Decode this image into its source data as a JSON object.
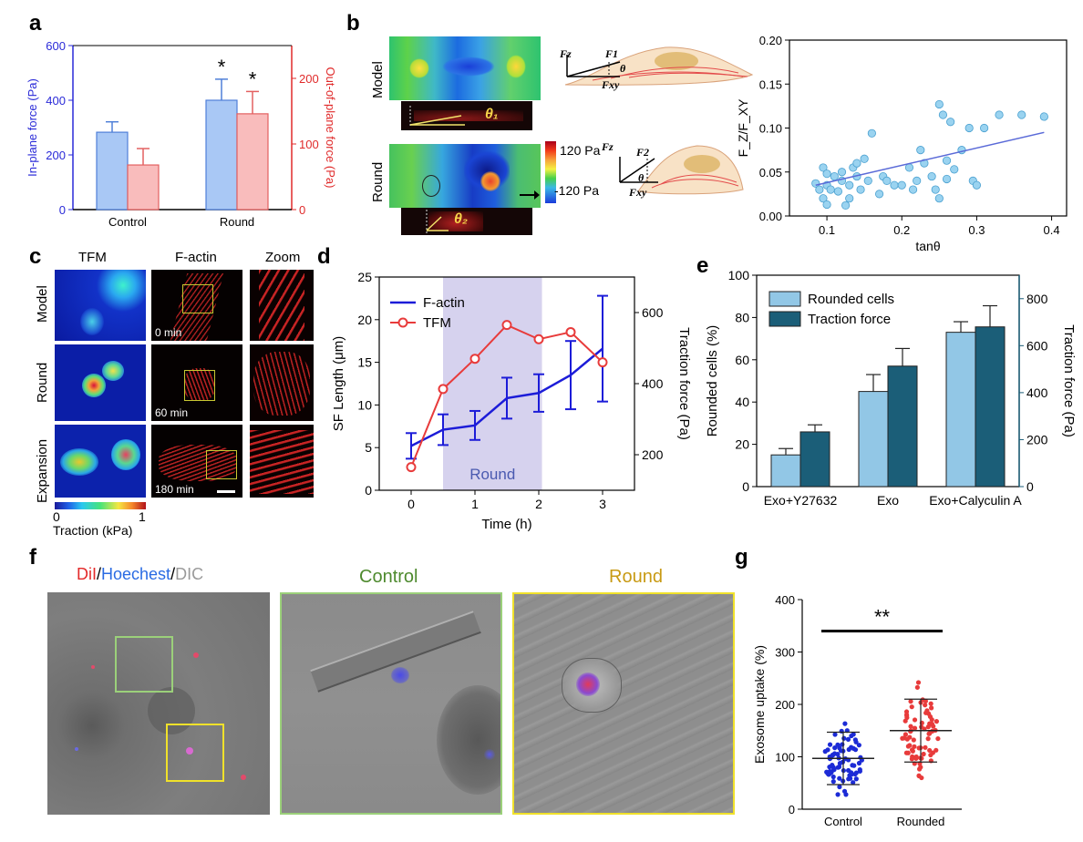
{
  "panels": {
    "a": "a",
    "b": "b",
    "c": "c",
    "d": "d",
    "e": "e",
    "f": "f",
    "g": "g"
  },
  "panel_b": {
    "row_model": "Model",
    "row_round": "Round",
    "theta1": "θ₁",
    "theta2": "θ₂",
    "colorbar_top": "120 Pa",
    "colorbar_bottom": "-120 Pa",
    "fz": "Fz",
    "f1": "F1",
    "f2": "F2",
    "fxy": "Fxy",
    "theta": "θ"
  },
  "panel_c": {
    "col_tfm": "TFM",
    "col_factin": "F-actin",
    "col_zoom": "Zoom",
    "row_model": "Model",
    "row_round": "Round",
    "row_expansion": "Expansion",
    "t0": "0 min",
    "t60": "60 min",
    "t180": "180 min",
    "cbar_min": "0",
    "cbar_max": "1",
    "cbar_label": "Traction (kPa)"
  },
  "panel_f": {
    "stain_dil": "DiI",
    "stain_sep1": "/",
    "stain_hoechst": "Hoechest",
    "stain_sep2": "/",
    "stain_dic": "DIC",
    "control": "Control",
    "round": "Round"
  },
  "chart_data": [
    {
      "id": "a",
      "type": "bar",
      "categories": [
        "Control",
        "Round"
      ],
      "series": [
        {
          "name": "In-plane force (Pa)",
          "axis": "left",
          "color": "#a9c8f5",
          "values": [
            283,
            400
          ],
          "errors": [
            38,
            77
          ]
        },
        {
          "name": "Out-of-plane force (Pa)",
          "axis": "right",
          "color": "#f9bcbc",
          "values": [
            68,
            146
          ],
          "errors": [
            25,
            34
          ]
        }
      ],
      "ylabel_left": "In-plane force (Pa)",
      "ylabel_right": "Out-of-plane force (Pa)",
      "ylim_left": [
        0,
        600
      ],
      "yticks_left": [
        0,
        200,
        400,
        600
      ],
      "ylim_right": [
        0,
        250
      ],
      "yticks_right": [
        0,
        100,
        200
      ],
      "annotations": [
        "*",
        "*"
      ]
    },
    {
      "id": "b",
      "type": "scatter",
      "xlabel": "tanθ",
      "ylabel": "F_Z/F_XY",
      "xlim": [
        0.05,
        0.42
      ],
      "xticks": [
        0.1,
        0.2,
        0.3,
        0.4
      ],
      "ylim": [
        0,
        0.2
      ],
      "yticks": [
        0.0,
        0.05,
        0.1,
        0.15,
        0.2
      ],
      "fit_line": [
        [
          0.085,
          0.035
        ],
        [
          0.39,
          0.095
        ]
      ],
      "points": [
        [
          0.085,
          0.037
        ],
        [
          0.09,
          0.03
        ],
        [
          0.095,
          0.055
        ],
        [
          0.095,
          0.02
        ],
        [
          0.1,
          0.048
        ],
        [
          0.1,
          0.035
        ],
        [
          0.1,
          0.013
        ],
        [
          0.105,
          0.03
        ],
        [
          0.11,
          0.045
        ],
        [
          0.115,
          0.028
        ],
        [
          0.12,
          0.04
        ],
        [
          0.12,
          0.05
        ],
        [
          0.125,
          0.012
        ],
        [
          0.13,
          0.02
        ],
        [
          0.13,
          0.035
        ],
        [
          0.135,
          0.055
        ],
        [
          0.14,
          0.06
        ],
        [
          0.14,
          0.045
        ],
        [
          0.145,
          0.03
        ],
        [
          0.15,
          0.065
        ],
        [
          0.155,
          0.04
        ],
        [
          0.16,
          0.094
        ],
        [
          0.17,
          0.025
        ],
        [
          0.175,
          0.045
        ],
        [
          0.18,
          0.04
        ],
        [
          0.19,
          0.035
        ],
        [
          0.2,
          0.035
        ],
        [
          0.21,
          0.055
        ],
        [
          0.215,
          0.03
        ],
        [
          0.22,
          0.04
        ],
        [
          0.225,
          0.075
        ],
        [
          0.23,
          0.06
        ],
        [
          0.24,
          0.045
        ],
        [
          0.245,
          0.03
        ],
        [
          0.25,
          0.02
        ],
        [
          0.25,
          0.127
        ],
        [
          0.255,
          0.115
        ],
        [
          0.26,
          0.063
        ],
        [
          0.26,
          0.042
        ],
        [
          0.265,
          0.107
        ],
        [
          0.27,
          0.053
        ],
        [
          0.28,
          0.075
        ],
        [
          0.29,
          0.1
        ],
        [
          0.295,
          0.04
        ],
        [
          0.3,
          0.035
        ],
        [
          0.31,
          0.1
        ],
        [
          0.33,
          0.115
        ],
        [
          0.36,
          0.115
        ],
        [
          0.39,
          0.113
        ]
      ]
    },
    {
      "id": "d",
      "type": "line",
      "x": [
        0,
        0.5,
        1,
        1.5,
        2,
        2.5,
        3
      ],
      "xlabel": "Time (h)",
      "xlim": [
        -0.5,
        3.5
      ],
      "xticks": [
        0,
        1,
        2,
        3
      ],
      "ylabel_left": "SF Length (μm)",
      "ylim_left": [
        0,
        25
      ],
      "yticks_left": [
        0,
        5,
        10,
        15,
        20,
        25
      ],
      "ylabel_right": "Traction force (Pa)",
      "ylim_right": [
        100,
        700
      ],
      "yticks_right": [
        200,
        400,
        600
      ],
      "shaded_region": {
        "x": [
          0.5,
          2.05
        ],
        "label": "Round"
      },
      "series": [
        {
          "name": "F-actin",
          "axis": "left",
          "color": "#1c1cd8",
          "values": [
            5.2,
            7.1,
            7.6,
            10.8,
            11.4,
            13.5,
            16.6
          ],
          "errors": [
            1.5,
            1.8,
            1.7,
            2.4,
            2.2,
            4.0,
            6.2
          ]
        },
        {
          "name": "TFM",
          "axis": "right",
          "color": "#e83b3b",
          "values": [
            165,
            385,
            470,
            565,
            525,
            545,
            460
          ]
        }
      ]
    },
    {
      "id": "e",
      "type": "bar",
      "categories": [
        "Exo+Y27632",
        "Exo",
        "Exo+Calyculin A"
      ],
      "series": [
        {
          "name": "Rounded cells",
          "axis": "left",
          "color": "#92c7e6",
          "values": [
            15,
            45,
            73
          ],
          "errors": [
            3,
            8,
            5
          ]
        },
        {
          "name": "Traction force",
          "axis": "right",
          "color": "#1b5e78",
          "values": [
            233,
            513,
            680
          ],
          "errors": [
            30,
            75,
            90
          ]
        }
      ],
      "ylabel_left": "Rounded cells (%)",
      "ylim_left": [
        0,
        100
      ],
      "yticks_left": [
        0,
        20,
        40,
        60,
        80,
        100
      ],
      "ylabel_right": "Traction force (Pa)",
      "ylim_right": [
        0,
        900
      ],
      "yticks_right": [
        0,
        200,
        400,
        600,
        800
      ]
    },
    {
      "id": "g",
      "type": "scatter",
      "categories": [
        "Control",
        "Rounded"
      ],
      "ylabel": "Exosome uptake (%)",
      "ylim": [
        0,
        400
      ],
      "yticks": [
        0,
        100,
        200,
        300,
        400
      ],
      "means": [
        97,
        150
      ],
      "sd": [
        50,
        60
      ],
      "significance": "**",
      "colors": [
        "#1c2bd6",
        "#e83b3b"
      ]
    }
  ]
}
